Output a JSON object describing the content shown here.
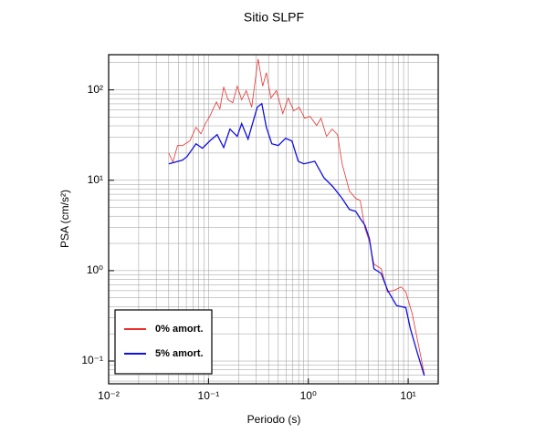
{
  "chart_data": {
    "type": "line",
    "title": "Sitio SLPF",
    "xlabel": "Periodo (s)",
    "ylabel": "PSA (cm/s²)",
    "xscale": "log",
    "yscale": "log",
    "grid": true,
    "minor_grid": true,
    "legend": "lower left",
    "xlim": [
      0.01,
      20
    ],
    "ylim": [
      0.056,
      245
    ],
    "xticks": [
      {
        "value": 0.01,
        "label": "10⁻²"
      },
      {
        "value": 0.1,
        "label": "10⁻¹"
      },
      {
        "value": 1,
        "label": "10⁰"
      },
      {
        "value": 10,
        "label": "10¹"
      }
    ],
    "yticks": [
      {
        "value": 0.1,
        "label": "10⁻¹"
      },
      {
        "value": 1,
        "label": "10⁰"
      },
      {
        "value": 10,
        "label": "10¹"
      },
      {
        "value": 100,
        "label": "10²"
      }
    ],
    "series": [
      {
        "name": "0% amort.",
        "color": "#e8322e",
        "x": [
          0.04,
          0.044,
          0.049,
          0.055,
          0.065,
          0.075,
          0.084,
          0.093,
          0.103,
          0.12,
          0.13,
          0.142,
          0.157,
          0.175,
          0.194,
          0.215,
          0.239,
          0.271,
          0.314,
          0.349,
          0.38,
          0.422,
          0.479,
          0.555,
          0.629,
          0.714,
          0.81,
          0.919,
          1.04,
          1.21,
          1.34,
          1.52,
          1.73,
          1.96,
          2.18,
          2.58,
          2.98,
          3.31,
          3.68,
          4.09,
          4.54,
          5.37,
          6.21,
          7.37,
          8.52,
          9.48,
          11.0,
          12.5,
          14.5
        ],
        "values": [
          20,
          15.9,
          24.2,
          24.2,
          27.2,
          38.5,
          32.6,
          42.3,
          51,
          73.6,
          61.5,
          108,
          77.6,
          72,
          110,
          77.6,
          98,
          64.3,
          220,
          110,
          155,
          81,
          98,
          54.6,
          81,
          58.5,
          64.3,
          48.5,
          51,
          40.4,
          48.5,
          30.6,
          36.8,
          32,
          15.2,
          7.6,
          6.3,
          6.0,
          2.98,
          2.1,
          1.18,
          1.05,
          0.58,
          0.61,
          0.66,
          0.58,
          0.33,
          0.163,
          0.072
        ]
      },
      {
        "name": "5% amort.",
        "color": "#1010e0",
        "x": [
          0.04,
          0.055,
          0.061,
          0.075,
          0.087,
          0.103,
          0.122,
          0.142,
          0.164,
          0.194,
          0.215,
          0.249,
          0.308,
          0.342,
          0.38,
          0.431,
          0.5,
          0.591,
          0.685,
          0.793,
          0.9,
          1.16,
          1.43,
          1.76,
          2.18,
          2.58,
          2.98,
          3.31,
          3.68,
          4.09,
          4.54,
          5.37,
          6.21,
          7.66,
          9.48,
          10.5,
          12.2,
          14.5
        ],
        "values": [
          15.2,
          16.7,
          18.3,
          25.3,
          22.6,
          27.2,
          32,
          23,
          36.8,
          30.6,
          42.3,
          28.5,
          64.3,
          70.5,
          38.5,
          25.3,
          24.2,
          29.1,
          27.2,
          16.2,
          15.2,
          16.2,
          10.7,
          8.5,
          6.3,
          4.75,
          4.53,
          3.77,
          3.2,
          2.26,
          1.05,
          0.93,
          0.61,
          0.41,
          0.39,
          0.23,
          0.129,
          0.069
        ]
      }
    ]
  }
}
